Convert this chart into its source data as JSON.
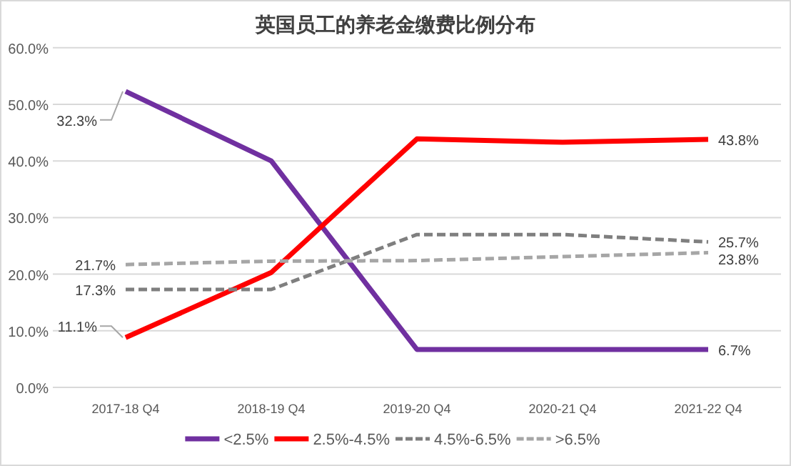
{
  "chart_data": {
    "type": "line",
    "title": "英国员工的养老金缴费比例分布",
    "categories": [
      "2017-18 Q4",
      "2018-19 Q4",
      "2019-20 Q4",
      "2020-21 Q4",
      "2021-22  Q4"
    ],
    "series": [
      {
        "name": "<2.5%",
        "color": "#7030a0",
        "line_style": "solid",
        "values": [
          52.3,
          40.0,
          6.7,
          6.7,
          6.7
        ],
        "value_labels": [
          null,
          null,
          null,
          null,
          "6.7%"
        ]
      },
      {
        "name": "2.5%-4.5%",
        "color": "#ff0000",
        "line_style": "solid",
        "values": [
          8.8,
          20.3,
          43.9,
          43.3,
          43.8
        ],
        "value_labels": [
          null,
          null,
          null,
          null,
          "43.8%"
        ]
      },
      {
        "name": "4.5%-6.5%",
        "color": "#7f7f7f",
        "line_style": "dashed",
        "values": [
          17.3,
          17.3,
          27.0,
          27.0,
          25.7
        ],
        "value_labels": [
          "17.3%",
          null,
          null,
          null,
          "25.7%"
        ]
      },
      {
        "name": ">6.5%",
        "color": "#a6a6a6",
        "line_style": "dashed",
        "values": [
          21.7,
          22.3,
          22.4,
          23.1,
          23.8
        ],
        "value_labels": [
          "21.7%",
          null,
          null,
          null,
          "23.8%"
        ]
      }
    ],
    "ylim": [
      0,
      60
    ],
    "yticks": [
      {
        "value": 0,
        "label": "0.0%"
      },
      {
        "value": 10,
        "label": "10.0%"
      },
      {
        "value": 20,
        "label": "20.0%"
      },
      {
        "value": 30,
        "label": "30.0%"
      },
      {
        "value": 40,
        "label": "40.0%"
      },
      {
        "value": 50,
        "label": "50.0%"
      },
      {
        "value": 60,
        "label": "60.0%"
      }
    ],
    "annotations": [
      {
        "text": "32.3%",
        "x": "2017-18 Q4",
        "y": 52.3
      },
      {
        "text": "11.1%",
        "x": "2017-18 Q4",
        "y": 8.8
      }
    ],
    "grid": "y",
    "legend": "bottom",
    "marker": "none"
  }
}
